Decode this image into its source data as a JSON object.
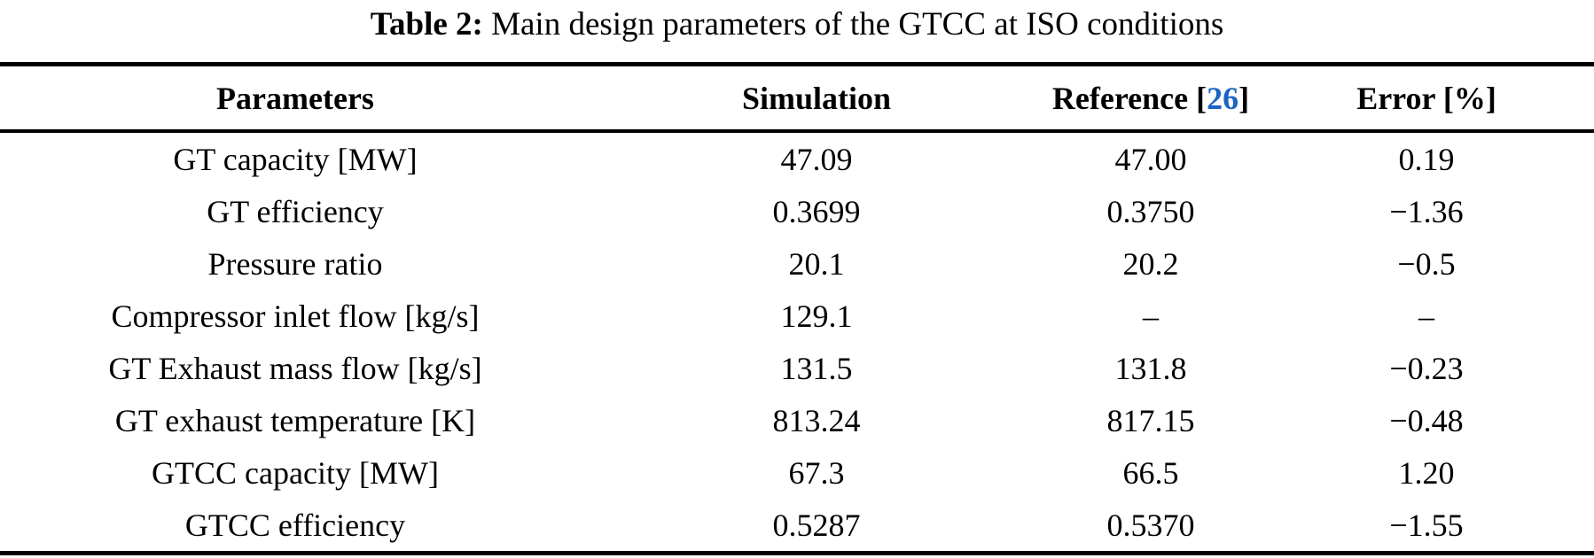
{
  "colors": {
    "background": "#ffffff",
    "text": "#000000",
    "rule": "#000000",
    "citation_blue": "#1B64C1"
  },
  "caption": {
    "label": "Table 2:",
    "text": " Main design parameters of the GTCC at ISO conditions"
  },
  "table": {
    "headers": {
      "parameters": "Parameters",
      "simulation": "Simulation",
      "reference_prefix": "Reference [",
      "reference_number": "26",
      "reference_suffix": "]",
      "error": "Error [%]"
    },
    "rows": [
      {
        "parameter": "GT capacity [MW]",
        "simulation": "47.09",
        "reference": "47.00",
        "error": "0.19"
      },
      {
        "parameter": "GT efficiency",
        "simulation": "0.3699",
        "reference": "0.3750",
        "error": "−1.36"
      },
      {
        "parameter": "Pressure ratio",
        "simulation": "20.1",
        "reference": "20.2",
        "error": "−0.5"
      },
      {
        "parameter": "Compressor inlet flow [kg/s]",
        "simulation": "129.1",
        "reference": "–",
        "error": "–"
      },
      {
        "parameter": "GT Exhaust mass flow [kg/s]",
        "simulation": "131.5",
        "reference": "131.8",
        "error": "−0.23"
      },
      {
        "parameter": "GT exhaust temperature [K]",
        "simulation": "813.24",
        "reference": "817.15",
        "error": "−0.48"
      },
      {
        "parameter": "GTCC capacity [MW]",
        "simulation": "67.3",
        "reference": "66.5",
        "error": "1.20"
      },
      {
        "parameter": "GTCC efficiency",
        "simulation": "0.5287",
        "reference": "0.5370",
        "error": "−1.55"
      }
    ]
  },
  "chart_data": {
    "type": "table",
    "title": "Table 2: Main design parameters of the GTCC at ISO conditions",
    "columns": [
      "Parameters",
      "Simulation",
      "Reference [26]",
      "Error [%]"
    ],
    "rows": [
      [
        "GT capacity [MW]",
        "47.09",
        "47.00",
        "0.19"
      ],
      [
        "GT efficiency",
        "0.3699",
        "0.3750",
        "−1.36"
      ],
      [
        "Pressure ratio",
        "20.1",
        "20.2",
        "−0.5"
      ],
      [
        "Compressor inlet flow [kg/s]",
        "129.1",
        "–",
        "–"
      ],
      [
        "GT Exhaust mass flow [kg/s]",
        "131.5",
        "131.8",
        "−0.23"
      ],
      [
        "GT exhaust temperature [K]",
        "813.24",
        "817.15",
        "−0.48"
      ],
      [
        "GTCC capacity [MW]",
        "67.3",
        "66.5",
        "1.20"
      ],
      [
        "GTCC efficiency",
        "0.5287",
        "0.5370",
        "−1.55"
      ]
    ]
  }
}
